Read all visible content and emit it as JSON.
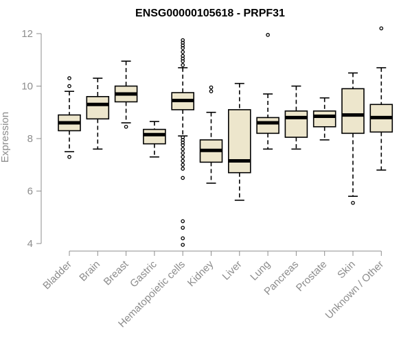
{
  "chart_data": {
    "type": "boxplot",
    "title": "ENSG00000105618 - PRPF31",
    "xlabel": "",
    "ylabel": "Expression",
    "ylim": [
      3.9,
      12.4
    ],
    "yticks": [
      4,
      6,
      8,
      10,
      12
    ],
    "grid": false,
    "legend": "none",
    "colors": {
      "box_fill": "#ede6cc",
      "line": "#000000",
      "axis": "#8c8c8c"
    },
    "categories": [
      "Bladder",
      "Brain",
      "Breast",
      "Gastric",
      "Hematopoietic cells",
      "Kidney",
      "Liver",
      "Lung",
      "Pancreas",
      "Prostate",
      "Skin",
      "Unknown / Other"
    ],
    "boxes": [
      {
        "category": "Bladder",
        "whisker_low": 7.5,
        "q1": 8.3,
        "median": 8.6,
        "q3": 8.9,
        "whisker_high": 9.8,
        "outliers": [
          7.3,
          10.0,
          10.3
        ]
      },
      {
        "category": "Brain",
        "whisker_low": 7.6,
        "q1": 8.75,
        "median": 9.3,
        "q3": 9.6,
        "whisker_high": 10.3,
        "outliers": []
      },
      {
        "category": "Breast",
        "whisker_low": 8.6,
        "q1": 9.4,
        "median": 9.7,
        "q3": 10.0,
        "whisker_high": 10.95,
        "outliers": [
          8.45
        ]
      },
      {
        "category": "Gastric",
        "whisker_low": 7.3,
        "q1": 7.8,
        "median": 8.15,
        "q3": 8.35,
        "whisker_high": 8.65,
        "outliers": []
      },
      {
        "category": "Hematopoietic cells",
        "whisker_low": 8.1,
        "q1": 9.1,
        "median": 9.45,
        "q3": 9.75,
        "whisker_high": 10.7,
        "outliers": [
          10.8,
          10.95,
          11.05,
          11.15,
          11.3,
          11.45,
          11.55,
          11.65,
          11.75,
          8.05,
          7.95,
          7.85,
          7.75,
          7.6,
          7.45,
          7.3,
          7.15,
          7.0,
          6.85,
          6.5,
          4.85,
          4.6,
          4.2,
          3.95
        ]
      },
      {
        "category": "Kidney",
        "whisker_low": 6.3,
        "q1": 7.1,
        "median": 7.55,
        "q3": 7.95,
        "whisker_high": 9.0,
        "outliers": [
          9.8,
          9.95
        ]
      },
      {
        "category": "Liver",
        "whisker_low": 5.65,
        "q1": 6.7,
        "median": 7.15,
        "q3": 9.1,
        "whisker_high": 10.1,
        "outliers": []
      },
      {
        "category": "Lung",
        "whisker_low": 7.6,
        "q1": 8.2,
        "median": 8.6,
        "q3": 8.8,
        "whisker_high": 9.7,
        "outliers": [
          11.95
        ]
      },
      {
        "category": "Pancreas",
        "whisker_low": 7.6,
        "q1": 8.05,
        "median": 8.8,
        "q3": 9.05,
        "whisker_high": 10.0,
        "outliers": []
      },
      {
        "category": "Prostate",
        "whisker_low": 7.95,
        "q1": 8.45,
        "median": 8.85,
        "q3": 9.05,
        "whisker_high": 9.55,
        "outliers": []
      },
      {
        "category": "Skin",
        "whisker_low": 5.8,
        "q1": 8.2,
        "median": 8.9,
        "q3": 9.9,
        "whisker_high": 10.5,
        "outliers": [
          5.55
        ]
      },
      {
        "category": "Unknown / Other",
        "whisker_low": 6.8,
        "q1": 8.25,
        "median": 8.8,
        "q3": 9.3,
        "whisker_high": 10.7,
        "outliers": [
          12.2
        ]
      }
    ]
  }
}
